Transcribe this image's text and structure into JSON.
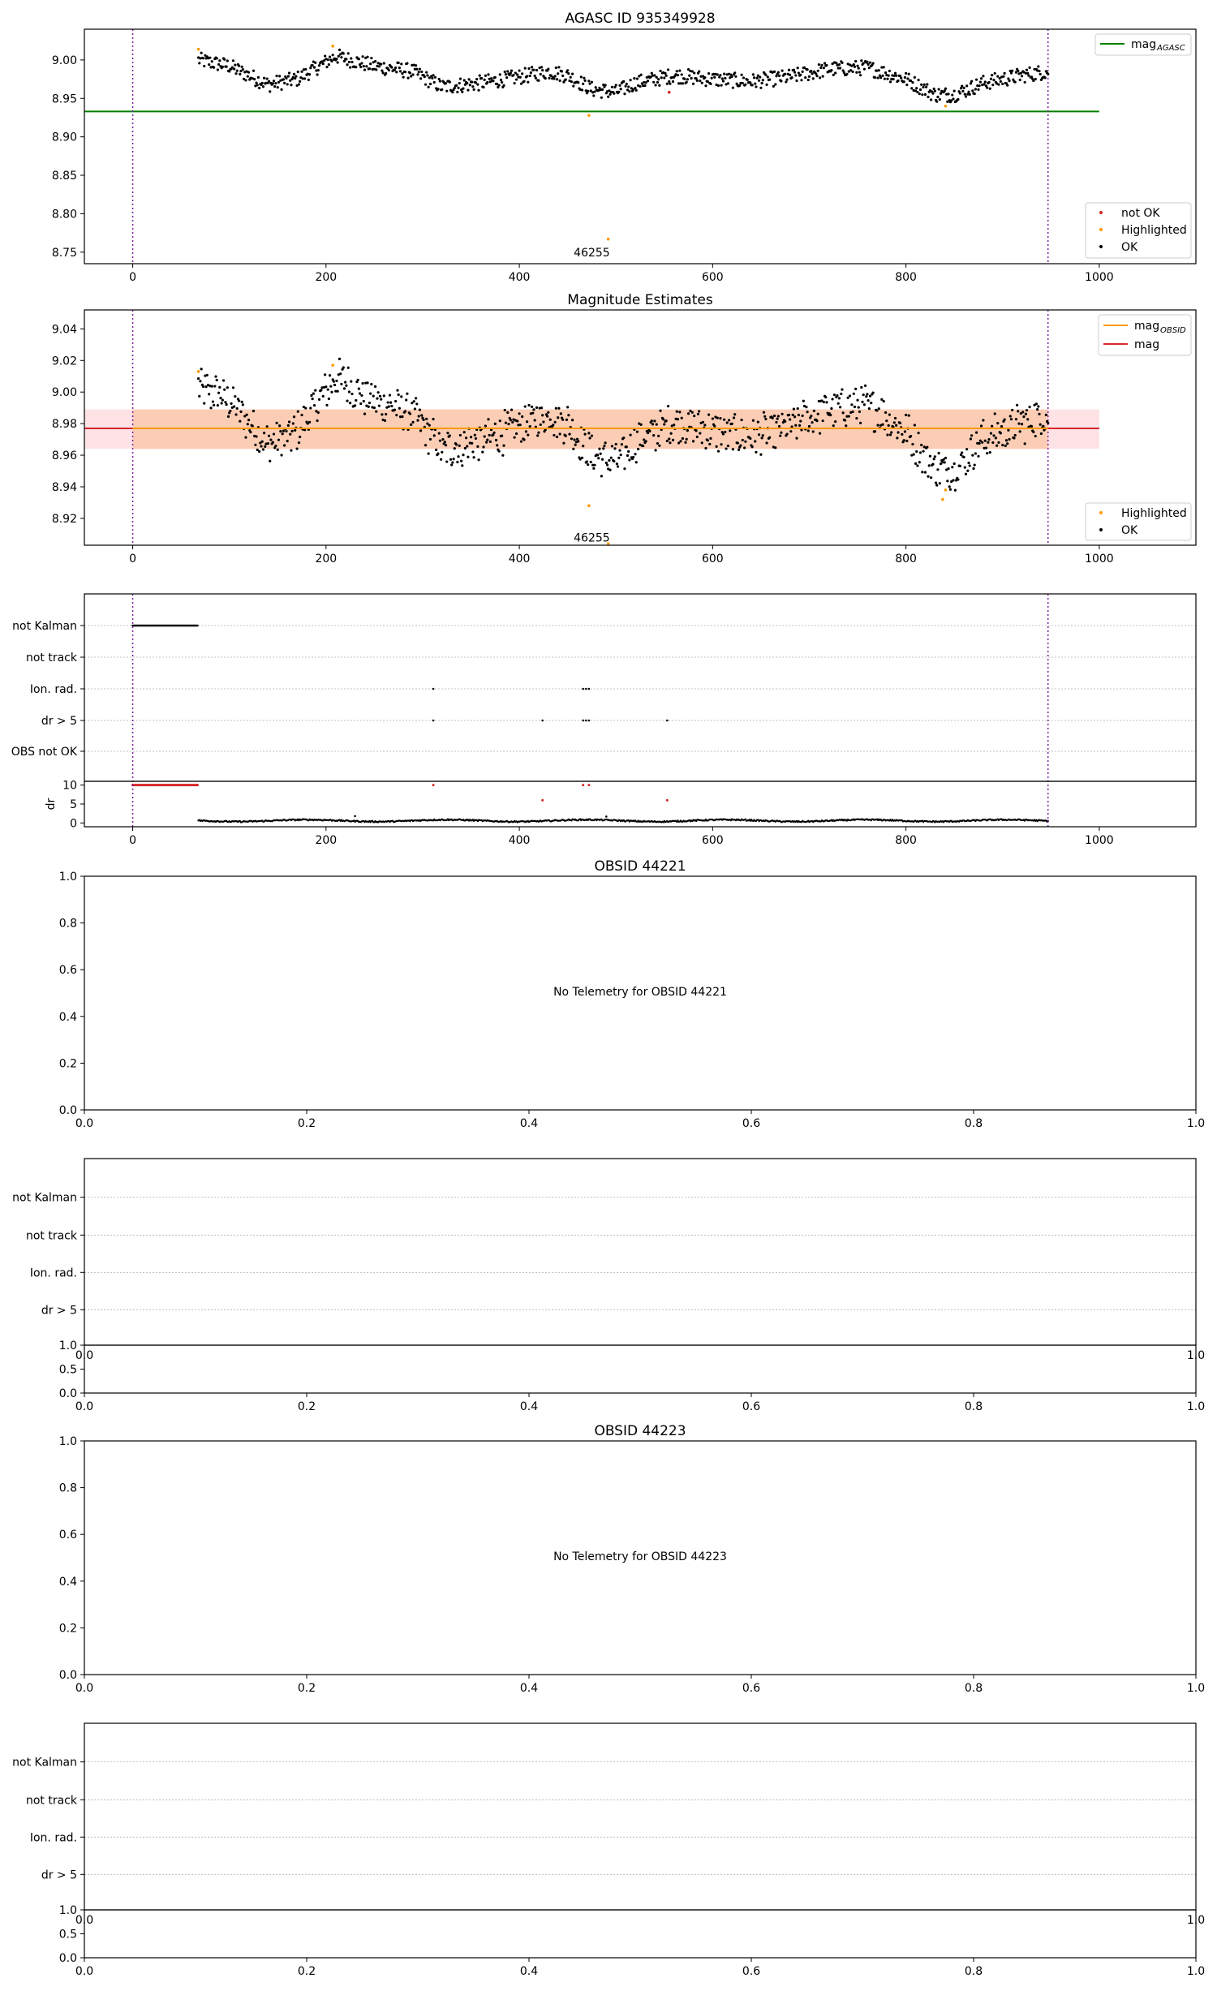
{
  "figure": {
    "panels": [
      {
        "id": "agasc",
        "title": "AGASC ID 935349928"
      },
      {
        "id": "mag_estimates",
        "title": "Magnitude Estimates"
      },
      {
        "id": "flags_main",
        "title": ""
      },
      {
        "id": "obsid_44221",
        "title": "OBSID 44221"
      },
      {
        "id": "flags_44221",
        "title": ""
      },
      {
        "id": "obsid_44223",
        "title": "OBSID 44223"
      },
      {
        "id": "flags_44223",
        "title": ""
      }
    ]
  },
  "chart_data": [
    {
      "panel": "agasc",
      "type": "scatter",
      "title": "AGASC ID 935349928",
      "xlim": [
        -50,
        1100
      ],
      "ylim": [
        8.735,
        9.04
      ],
      "xticks": [
        0,
        200,
        400,
        600,
        800,
        1000
      ],
      "yticks": [
        "8.75",
        "8.80",
        "8.85",
        "8.90",
        "8.95",
        "9.00"
      ],
      "reference_lines": [
        {
          "name": "mag_AGASC",
          "value": 8.933,
          "x_range": [
            -50,
            1000
          ],
          "color": "#008000"
        }
      ],
      "vertical_lines": [
        0,
        947
      ],
      "series": [
        {
          "name": "not OK",
          "color": "#d62728",
          "points": [
            [
              555,
              8.958
            ]
          ]
        },
        {
          "name": "Highlighted",
          "color": "#ff9900",
          "points": [
            [
              68,
              9.014
            ],
            [
              207,
              9.018
            ],
            [
              472,
              8.928
            ],
            [
              492,
              8.767
            ],
            [
              841,
              8.94
            ]
          ]
        },
        {
          "name": "OK",
          "color": "#000000",
          "n_points": 880,
          "x_range": [
            68,
            947
          ]
        }
      ],
      "annotations": [
        {
          "text": "46255",
          "x": 475,
          "y": 8.75
        }
      ],
      "legends": [
        {
          "position": "upper right",
          "entries": [
            "mag",
            "AGASC"
          ]
        },
        {
          "position": "lower right",
          "entries": [
            "not OK",
            "Highlighted",
            "OK"
          ]
        }
      ]
    },
    {
      "panel": "mag_estimates",
      "type": "scatter",
      "title": "Magnitude Estimates",
      "xlim": [
        -50,
        1100
      ],
      "ylim": [
        8.903,
        9.052
      ],
      "xticks": [
        0,
        200,
        400,
        600,
        800,
        1000
      ],
      "yticks": [
        "8.92",
        "8.94",
        "8.96",
        "8.98",
        "9.00",
        "9.02",
        "9.04"
      ],
      "reference_lines": [
        {
          "name": "mag",
          "value": 8.977,
          "x_range": [
            -50,
            1000
          ],
          "color": "#d62728",
          "band": [
            8.964,
            8.989
          ]
        },
        {
          "name": "mag_OBSID",
          "value": 8.977,
          "x_range": [
            0,
            947
          ],
          "color": "#ff9900",
          "band": [
            8.964,
            8.989
          ]
        }
      ],
      "vertical_lines": [
        0,
        947
      ],
      "series": [
        {
          "name": "Highlighted",
          "color": "#ff9900",
          "points": [
            [
              68,
              9.013
            ],
            [
              207,
              9.017
            ],
            [
              472,
              8.928
            ],
            [
              492,
              8.904
            ],
            [
              838,
              8.932
            ],
            [
              841,
              8.938
            ]
          ]
        },
        {
          "name": "OK",
          "color": "#000000",
          "n_points": 880,
          "x_range": [
            68,
            947
          ]
        }
      ],
      "annotations": [
        {
          "text": "46255",
          "x": 475,
          "y": 8.908
        }
      ],
      "legends": [
        {
          "position": "upper right",
          "entries": [
            "mag",
            "OBSID",
            "mag"
          ]
        },
        {
          "position": "lower right",
          "entries": [
            "Highlighted",
            "OK"
          ]
        }
      ]
    },
    {
      "panel": "flags_main",
      "type": "scatter",
      "xlim": [
        -50,
        1100
      ],
      "xticks": [
        0,
        200,
        400,
        600,
        800,
        1000
      ],
      "categories": [
        "not Kalman",
        "not track",
        "Ion. rad.",
        "dr > 5",
        "OBS not OK"
      ],
      "flag_points": {
        "not Kalman": {
          "x_range": [
            0,
            67
          ]
        },
        "Ion. rad.": {
          "x": [
            311,
            466,
            469,
            472
          ]
        },
        "dr > 5": {
          "x": [
            311,
            424,
            466,
            469,
            472,
            553
          ]
        }
      },
      "subplot": {
        "ylabel": "dr",
        "ylim": [
          -1,
          11
        ],
        "yticks": [
          "0",
          "5",
          "10"
        ],
        "series": [
          {
            "name": "dr capped",
            "color": "#d62728",
            "points": [
              [
                0,
                10
              ],
              [
                67,
                10
              ],
              [
                311,
                10
              ],
              [
                424,
                6
              ],
              [
                466,
                10
              ],
              [
                472,
                10
              ],
              [
                553,
                6
              ]
            ]
          },
          {
            "name": "dr",
            "color": "#000000",
            "n_points": 880,
            "x_range": [
              68,
              947
            ],
            "typical": 0.6
          }
        ]
      },
      "vertical_lines": [
        0,
        947
      ]
    },
    {
      "panel": "obsid_44221",
      "type": "scatter",
      "title": "OBSID 44221",
      "xlim": [
        0,
        1
      ],
      "ylim": [
        0,
        1
      ],
      "xticks": [
        "0.0",
        "0.2",
        "0.4",
        "0.6",
        "0.8",
        "1.0"
      ],
      "yticks": [
        "0.0",
        "0.2",
        "0.4",
        "0.6",
        "0.8",
        "1.0"
      ],
      "message": "No Telemetry for OBSID 44221"
    },
    {
      "panel": "flags_44221",
      "type": "scatter",
      "categories": [
        "not Kalman",
        "not track",
        "Ion. rad.",
        "dr > 5"
      ],
      "xticks": [
        "0.0",
        "0.2",
        "0.4",
        "0.6",
        "0.8",
        "1.0"
      ],
      "subplot_yticks": [
        "0.0",
        "0.5",
        "1.0"
      ]
    },
    {
      "panel": "obsid_44223",
      "type": "scatter",
      "title": "OBSID 44223",
      "xlim": [
        0,
        1
      ],
      "ylim": [
        0,
        1
      ],
      "xticks": [
        "0.0",
        "0.2",
        "0.4",
        "0.6",
        "0.8",
        "1.0"
      ],
      "yticks": [
        "0.0",
        "0.2",
        "0.4",
        "0.6",
        "0.8",
        "1.0"
      ],
      "message": "No Telemetry for OBSID 44223"
    },
    {
      "panel": "flags_44223",
      "type": "scatter",
      "categories": [
        "not Kalman",
        "not track",
        "Ion. rad.",
        "dr > 5"
      ],
      "xticks": [
        "0.0",
        "0.2",
        "0.4",
        "0.6",
        "0.8",
        "1.0"
      ],
      "subplot_yticks": [
        "0.0",
        "0.5",
        "1.0"
      ]
    }
  ]
}
